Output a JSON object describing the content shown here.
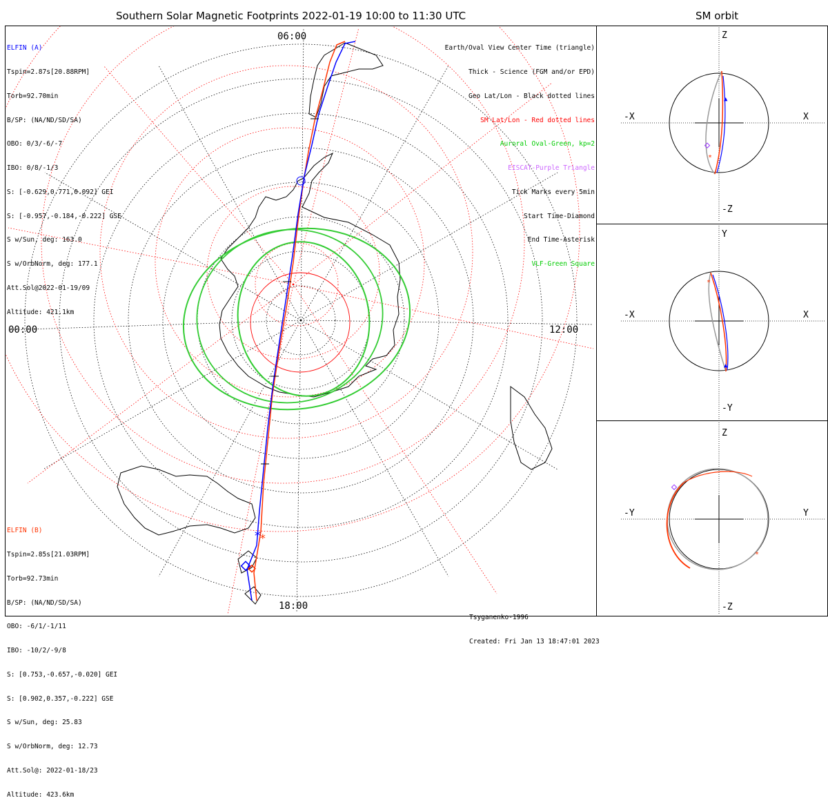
{
  "main": {
    "title": "Southern Solar Magnetic Footprints 2022-01-19 10:00 to 11:30 UTC",
    "time_labels": {
      "top": "06:00",
      "left": "00:00",
      "right": "12:00",
      "bottom": "18:00"
    }
  },
  "side": {
    "title": "SM orbit"
  },
  "elfin_a": {
    "name": "ELFIN (A)",
    "color": "#0000ff",
    "lines": [
      "Tspin=2.87s[20.88RPM]",
      "Torb=92.70min",
      "B/SP: (NA/ND/SD/SA)",
      "OBO: 0/3/-6/-7",
      "IBO: 0/8/-1/3",
      "S: [-0.629,0.771,0.092] GEI",
      "S: [-0.957,-0.184,-0.222] GSE",
      "S w/Sun, deg: 163.0",
      "S w/OrbNorm, deg: 177.1",
      "Att.Sol@2022-01-19/09",
      "Altitude: 421.1km"
    ]
  },
  "elfin_b": {
    "name": "ELFIN (B)",
    "color": "#ff3300",
    "lines": [
      "Tspin=2.85s[21.03RPM]",
      "Torb=92.73min",
      "B/SP: (NA/ND/SD/SA)",
      "OBO: -6/1/-1/11",
      "IBO: -10/2/-9/8",
      "S: [0.753,-0.657,-0.020] GEI",
      "S: [0.902,0.357,-0.222] GSE",
      "S w/Sun, deg: 25.83",
      "S w/OrbNorm, deg: 12.73",
      "Att.Sol@: 2022-01-18/23",
      "Altitude: 423.6km"
    ]
  },
  "legend": [
    {
      "text": "Earth/Oval View Center Time (triangle)",
      "color": "#000000"
    },
    {
      "text": "Thick - Science (FGM and/or EPD)",
      "color": "#000000"
    },
    {
      "text": "Geo Lat/Lon - Black dotted lines",
      "color": "#000000"
    },
    {
      "text": "SM Lat/Lon - Red dotted lines",
      "color": "#ff0000"
    },
    {
      "text": "Auroral Oval-Green, kp=2",
      "color": "#00cc00"
    },
    {
      "text": "EISCAT-Purple Triangle",
      "color": "#cc66ff"
    },
    {
      "text": "Tick Marks every 5min",
      "color": "#000000"
    },
    {
      "text": "Start Time-Diamond",
      "color": "#000000"
    },
    {
      "text": "End Time-Asterisk",
      "color": "#000000"
    },
    {
      "text": "VLF-Green Square",
      "color": "#00cc00"
    }
  ],
  "credits": {
    "model": "Tsyganenko-1996",
    "created": "Created: Fri Jan 13 18:47:01 2023"
  },
  "panels": [
    {
      "top": "Z",
      "bottom": "-Z",
      "left": "-X",
      "right": "X"
    },
    {
      "top": "Y",
      "bottom": "-Y",
      "left": "-X",
      "right": "X"
    },
    {
      "top": "Z",
      "bottom": "-Z",
      "left": "-Y",
      "right": "Y"
    }
  ],
  "colors": {
    "orbit_a": "#0000ff",
    "orbit_b": "#ff3300",
    "sm_grid": "#ff0000",
    "geo_grid": "#000000",
    "oval": "#00cc00",
    "earth_shadow": "#999999"
  }
}
